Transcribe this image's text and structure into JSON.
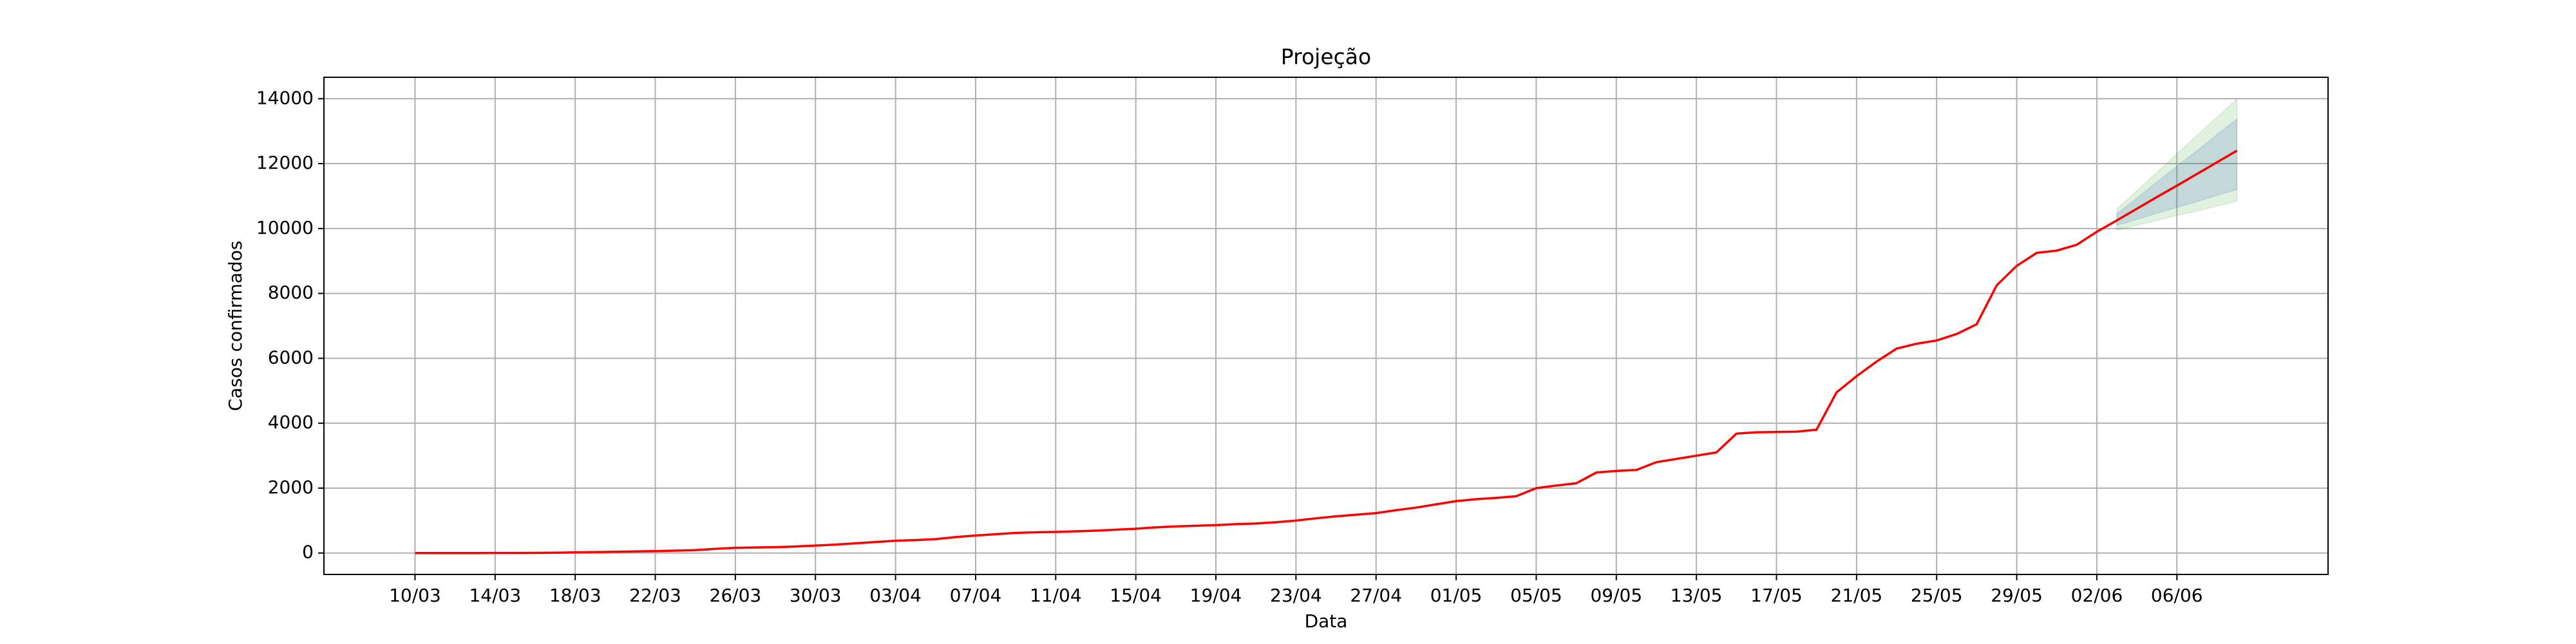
{
  "chart_data": {
    "type": "line",
    "title": "Projeção",
    "xlabel": "Data",
    "ylabel": "Casos confirmados",
    "x": [
      "10/03",
      "11/03",
      "12/03",
      "13/03",
      "14/03",
      "15/03",
      "16/03",
      "17/03",
      "18/03",
      "19/03",
      "20/03",
      "21/03",
      "22/03",
      "23/03",
      "24/03",
      "25/03",
      "26/03",
      "27/03",
      "28/03",
      "29/03",
      "30/03",
      "31/03",
      "01/04",
      "02/04",
      "03/04",
      "04/04",
      "05/04",
      "06/04",
      "07/04",
      "08/04",
      "09/04",
      "10/04",
      "11/04",
      "12/04",
      "13/04",
      "14/04",
      "15/04",
      "16/04",
      "17/04",
      "18/04",
      "19/04",
      "20/04",
      "21/04",
      "22/04",
      "23/04",
      "24/04",
      "25/04",
      "26/04",
      "27/04",
      "28/04",
      "29/04",
      "30/04",
      "01/05",
      "02/05",
      "03/05",
      "04/05",
      "05/05",
      "06/05",
      "07/05",
      "08/05",
      "09/05",
      "10/05",
      "11/05",
      "12/05",
      "13/05",
      "14/05",
      "15/05",
      "16/05",
      "17/05",
      "18/05",
      "19/05",
      "20/05",
      "21/05",
      "22/05",
      "23/05",
      "24/05",
      "25/05",
      "26/05",
      "27/05",
      "28/05",
      "29/05",
      "30/05",
      "31/05",
      "01/06",
      "02/06",
      "03/06",
      "04/06",
      "05/06",
      "06/06",
      "07/06",
      "08/06",
      "09/06"
    ],
    "series": [
      {
        "color": "#ff0000",
        "values": [
          0,
          0,
          1,
          1,
          2,
          3,
          4,
          10,
          20,
          30,
          40,
          50,
          60,
          75,
          90,
          130,
          160,
          170,
          180,
          200,
          230,
          260,
          300,
          340,
          380,
          400,
          430,
          490,
          540,
          580,
          620,
          640,
          650,
          670,
          690,
          720,
          750,
          790,
          820,
          840,
          860,
          890,
          910,
          950,
          1000,
          1070,
          1130,
          1180,
          1230,
          1320,
          1400,
          1500,
          1600,
          1660,
          1700,
          1750,
          2000,
          2080,
          2150,
          2480,
          2530,
          2560,
          2800,
          2900,
          3000,
          3100,
          3680,
          3720,
          3730,
          3740,
          3800,
          4950,
          5450,
          5900,
          6300,
          6450,
          6550,
          6750,
          7050,
          8250,
          8850,
          9250,
          9320,
          9500,
          9900,
          10250,
          10610,
          10970,
          11320,
          11680,
          12040,
          12400
        ]
      }
    ],
    "bands": [
      {
        "color": "#2ca02c",
        "x": [
          "03/06",
          "04/06",
          "05/06",
          "06/06",
          "07/06",
          "08/06",
          "09/06"
        ],
        "lower": [
          9950,
          10100,
          10250,
          10400,
          10540,
          10690,
          10840
        ],
        "upper": [
          10600,
          11170,
          11730,
          12300,
          12870,
          13430,
          14000
        ]
      },
      {
        "color": "#1f4fb4",
        "x": [
          "03/06",
          "04/06",
          "05/06",
          "06/06",
          "07/06",
          "08/06",
          "09/06"
        ],
        "lower": [
          10100,
          10280,
          10470,
          10650,
          10830,
          11020,
          11200
        ],
        "upper": [
          10450,
          10940,
          11430,
          11920,
          12400,
          12890,
          13380
        ]
      }
    ],
    "xticks": [
      "10/03",
      "14/03",
      "18/03",
      "22/03",
      "26/03",
      "30/03",
      "03/04",
      "07/04",
      "11/04",
      "15/04",
      "19/04",
      "23/04",
      "27/04",
      "01/05",
      "05/05",
      "09/05",
      "13/05",
      "17/05",
      "21/05",
      "25/05",
      "29/05",
      "02/06",
      "06/06"
    ],
    "ylim": [
      -660,
      14660
    ],
    "yticks": [
      0,
      2000,
      4000,
      6000,
      8000,
      10000,
      12000,
      14000
    ],
    "grid": true
  }
}
